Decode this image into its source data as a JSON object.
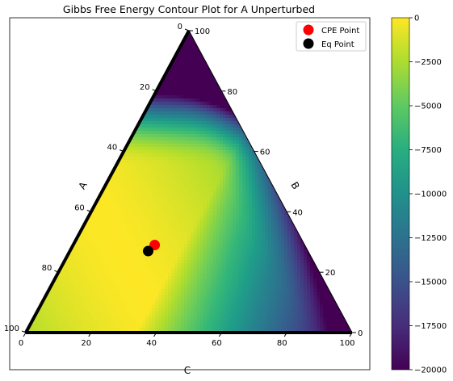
{
  "chart_data": {
    "type": "heatmap",
    "title": "Gibbs Free Energy Contour Plot for A Unperturbed",
    "axes": {
      "A": {
        "label": "A",
        "ticks": [
          0,
          20,
          40,
          60,
          80,
          100
        ]
      },
      "B": {
        "label": "B",
        "ticks": [
          0,
          20,
          40,
          60,
          80,
          100
        ]
      },
      "C": {
        "label": "C",
        "ticks": [
          0,
          20,
          40,
          60,
          80,
          100
        ]
      }
    },
    "colormap": "viridis",
    "colorbar": {
      "min": -20000,
      "max": 0,
      "ticks": [
        0,
        -2500,
        -5000,
        -7500,
        -10000,
        -12500,
        -15000,
        -17500,
        -20000
      ]
    },
    "points": [
      {
        "name": "CPE Point",
        "color": "#ff0000",
        "A": 46,
        "B": 29,
        "C": 25
      },
      {
        "name": "Eq Point",
        "color": "#000000",
        "A": 49,
        "B": 27,
        "C": 24
      }
    ],
    "legend": {
      "position": "top-right"
    }
  }
}
